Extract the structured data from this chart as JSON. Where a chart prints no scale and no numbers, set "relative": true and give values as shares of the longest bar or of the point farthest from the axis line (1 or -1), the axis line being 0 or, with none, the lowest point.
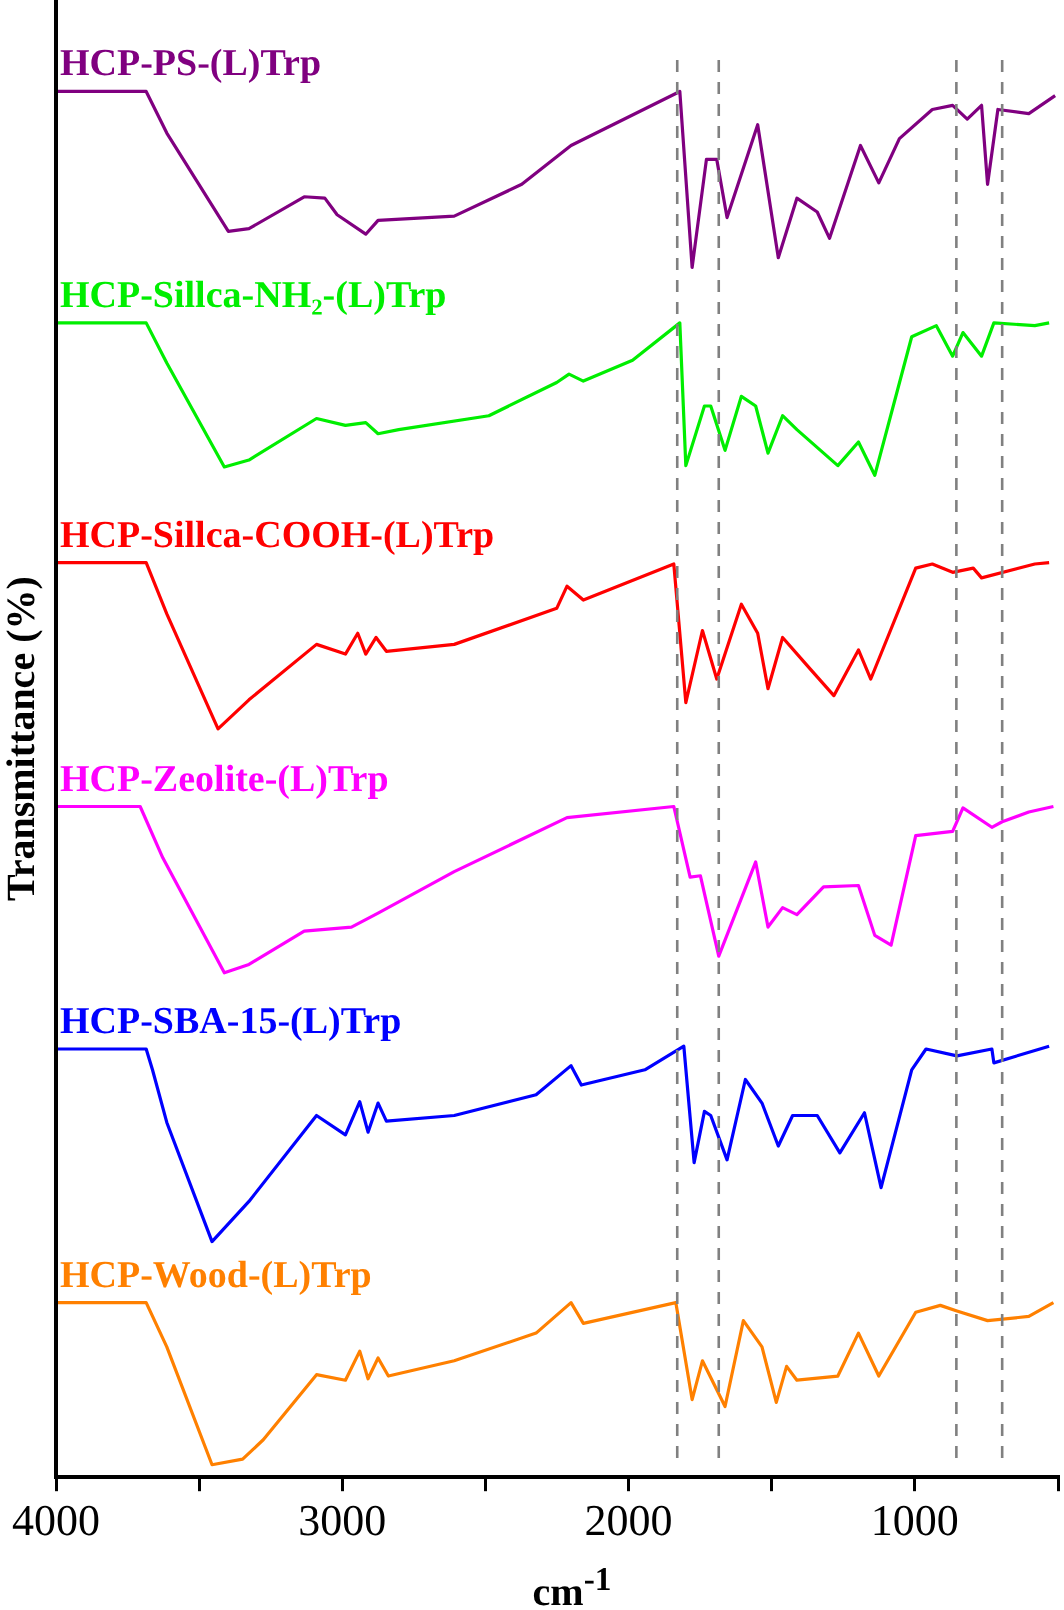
{
  "chart_data": {
    "type": "line",
    "relative": true,
    "xlabel": "cm$^{-1}$",
    "ylabel": "Transmittance (%)",
    "xlim": [
      4000,
      500
    ],
    "xticks": [
      4000,
      {
        "value": 3500,
        "label": null
      },
      3000,
      {
        "value": 2500,
        "label": null
      },
      2000,
      {
        "value": 1500,
        "label": null
      },
      1000,
      {
        "value": 500,
        "label": null
      }
    ],
    "grid": false,
    "legend": false,
    "tick_labels": "x",
    "marker": "none",
    "ref_lines": [
      {
        "axis": "x",
        "value": 1830,
        "label": null,
        "color": "#808080",
        "line_style": "dashed"
      },
      {
        "axis": "x",
        "value": 1685,
        "label": null,
        "color": "#808080",
        "line_style": "dashed"
      },
      {
        "axis": "x",
        "value": 855,
        "label": null,
        "color": "#808080",
        "line_style": "dashed"
      },
      {
        "axis": "x",
        "value": 695,
        "label": null,
        "color": "#808080",
        "line_style": "dashed"
      }
    ],
    "series": [
      {
        "name": "HCP-PS-(L)Trp",
        "color": "#800080",
        "x": [
          3993,
          3685,
          3613,
          3398,
          3326,
          3133,
          3061,
          3018,
          2918,
          2875,
          2609,
          2373,
          2201,
          1821,
          1778,
          1728,
          1692,
          1656,
          1549,
          1477,
          1412,
          1341,
          1298,
          1190,
          1126,
          1054,
          939,
          868,
          817,
          767,
          746,
          710,
          602,
          510
        ],
        "values": [
          1,
          1,
          0.97,
          0.899,
          0.901,
          0.924,
          0.923,
          0.911,
          0.897,
          0.907,
          0.91,
          0.933,
          0.961,
          1,
          0.873,
          0.951,
          0.951,
          0.909,
          0.976,
          0.88,
          0.923,
          0.913,
          0.894,
          0.961,
          0.934,
          0.966,
          0.987,
          0.99,
          0.98,
          0.99,
          0.933,
          0.987,
          0.984,
          0.997
        ]
      },
      {
        "name": "HCP-Sillca-NH₂-(L)Trp",
        "color": "#00ee00",
        "x": [
          3993,
          3685,
          3613,
          3412,
          3326,
          3090,
          2989,
          2918,
          2875,
          2803,
          2488,
          2251,
          2208,
          2158,
          1986,
          1821,
          1800,
          1735,
          1713,
          1663,
          1606,
          1556,
          1513,
          1462,
          1412,
          1269,
          1197,
          1140,
          1011,
          925,
          868,
          832,
          767,
          724,
          581,
          531
        ],
        "values": [
          0.833,
          0.833,
          0.804,
          0.729,
          0.734,
          0.764,
          0.759,
          0.761,
          0.753,
          0.756,
          0.766,
          0.79,
          0.796,
          0.791,
          0.806,
          0.833,
          0.73,
          0.773,
          0.773,
          0.741,
          0.78,
          0.773,
          0.739,
          0.766,
          0.756,
          0.73,
          0.747,
          0.723,
          0.823,
          0.831,
          0.809,
          0.826,
          0.809,
          0.833,
          0.831,
          0.833
        ]
      },
      {
        "name": "HCP-Sillca-COOH-(L)Trp",
        "color": "#ff0000",
        "x": [
          3993,
          3685,
          3613,
          3434,
          3326,
          3090,
          2989,
          2946,
          2918,
          2882,
          2846,
          2609,
          2251,
          2215,
          2158,
          1842,
          1800,
          1742,
          1692,
          1606,
          1549,
          1513,
          1462,
          1369,
          1283,
          1197,
          1154,
          997,
          939,
          868,
          796,
          767,
          581,
          531
        ],
        "values": [
          0.66,
          0.66,
          0.623,
          0.54,
          0.561,
          0.601,
          0.594,
          0.609,
          0.594,
          0.606,
          0.596,
          0.601,
          0.627,
          0.643,
          0.633,
          0.659,
          0.559,
          0.611,
          0.576,
          0.63,
          0.609,
          0.569,
          0.606,
          0.584,
          0.564,
          0.597,
          0.576,
          0.656,
          0.659,
          0.653,
          0.656,
          0.649,
          0.659,
          0.66
        ]
      },
      {
        "name": "HCP-Zeolite-(L)Trp",
        "color": "#ff00ff",
        "x": [
          3993,
          3706,
          3627,
          3412,
          3326,
          3133,
          2968,
          2875,
          2609,
          2215,
          1842,
          1785,
          1749,
          1685,
          1556,
          1513,
          1462,
          1412,
          1319,
          1197,
          1140,
          1083,
          997,
          868,
          832,
          731,
          695,
          602,
          516
        ],
        "values": [
          0.484,
          0.484,
          0.447,
          0.364,
          0.37,
          0.394,
          0.397,
          0.407,
          0.437,
          0.476,
          0.484,
          0.433,
          0.434,
          0.376,
          0.444,
          0.397,
          0.411,
          0.406,
          0.426,
          0.427,
          0.391,
          0.384,
          0.463,
          0.466,
          0.483,
          0.469,
          0.473,
          0.48,
          0.484
        ]
      },
      {
        "name": "HCP-SBA-15-(L)Trp",
        "color": "#0000ff",
        "x": [
          3993,
          3685,
          3663,
          3613,
          3455,
          3326,
          3090,
          2989,
          2939,
          2910,
          2875,
          2846,
          2609,
          2323,
          2201,
          2165,
          1943,
          1807,
          1771,
          1735,
          1713,
          1656,
          1592,
          1534,
          1477,
          1427,
          1341,
          1262,
          1176,
          1118,
          1011,
          961,
          853,
          731,
          724,
          531
        ],
        "values": [
          0.309,
          0.309,
          0.294,
          0.256,
          0.17,
          0.199,
          0.261,
          0.247,
          0.271,
          0.249,
          0.27,
          0.257,
          0.261,
          0.276,
          0.297,
          0.283,
          0.294,
          0.311,
          0.227,
          0.264,
          0.261,
          0.229,
          0.287,
          0.27,
          0.239,
          0.261,
          0.261,
          0.234,
          0.263,
          0.209,
          0.294,
          0.309,
          0.304,
          0.309,
          0.299,
          0.311
        ]
      },
      {
        "name": "HCP-Wood-(L)Trp",
        "color": "#ff8000",
        "x": [
          3993,
          3685,
          3613,
          3455,
          3348,
          3276,
          3090,
          2989,
          2939,
          2910,
          2875,
          2839,
          2609,
          2323,
          2201,
          2158,
          1835,
          1778,
          1742,
          1663,
          1599,
          1534,
          1484,
          1448,
          1412,
          1269,
          1197,
          1126,
          997,
          911,
          853,
          746,
          602,
          516
        ],
        "values": [
          0.126,
          0.126,
          0.094,
          0.009,
          0.013,
          0.027,
          0.074,
          0.07,
          0.091,
          0.071,
          0.086,
          0.073,
          0.084,
          0.104,
          0.126,
          0.111,
          0.126,
          0.056,
          0.084,
          0.051,
          0.113,
          0.094,
          0.054,
          0.08,
          0.07,
          0.073,
          0.104,
          0.073,
          0.119,
          0.124,
          0.12,
          0.113,
          0.116,
          0.126
        ]
      }
    ]
  }
}
